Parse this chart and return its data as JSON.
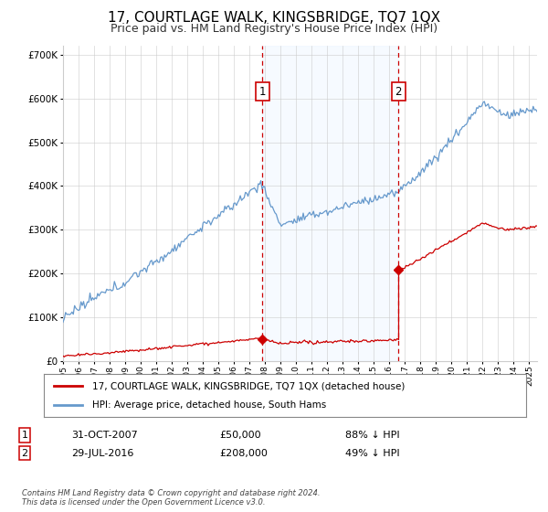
{
  "title": "17, COURTLAGE WALK, KINGSBRIDGE, TQ7 1QX",
  "subtitle": "Price paid vs. HM Land Registry's House Price Index (HPI)",
  "ylim": [
    0,
    720000
  ],
  "yticks": [
    0,
    100000,
    200000,
    300000,
    400000,
    500000,
    600000,
    700000
  ],
  "xlim_start": 1995.0,
  "xlim_end": 2025.5,
  "marker1_x": 2007.833,
  "marker1_y": 50000,
  "marker2_x": 2016.583,
  "marker2_y": 208000,
  "hpi_color": "#6699cc",
  "price_color": "#cc0000",
  "shade_color": "#ddeeff",
  "grid_color": "#cccccc",
  "bg_color": "#ffffff",
  "legend_label_price": "17, COURTLAGE WALK, KINGSBRIDGE, TQ7 1QX (detached house)",
  "legend_label_hpi": "HPI: Average price, detached house, South Hams",
  "footnote": "Contains HM Land Registry data © Crown copyright and database right 2024.\nThis data is licensed under the Open Government Licence v3.0.",
  "title_fontsize": 11,
  "subtitle_fontsize": 9,
  "marker1_date": "31-OCT-2007",
  "marker1_price": "£50,000",
  "marker1_hpi": "88% ↓ HPI",
  "marker2_date": "29-JUL-2016",
  "marker2_price": "£208,000",
  "marker2_hpi": "49% ↓ HPI"
}
